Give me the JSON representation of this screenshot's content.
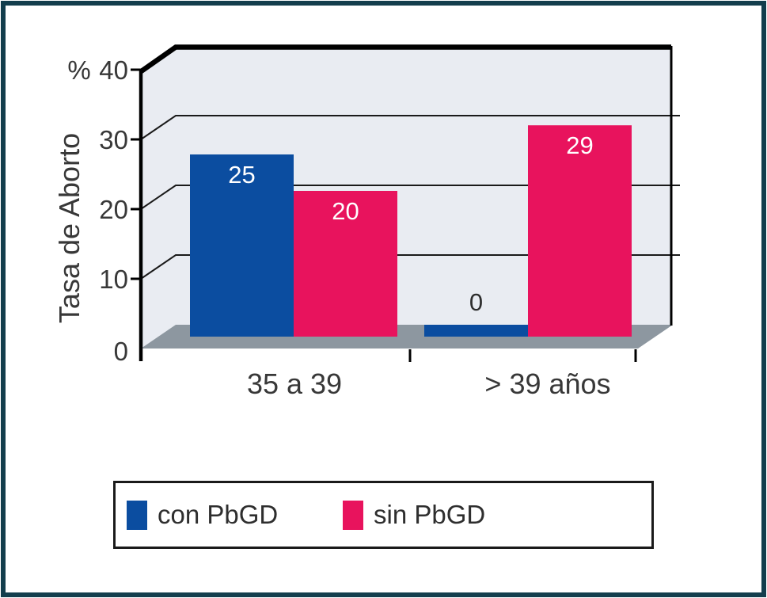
{
  "frame": {
    "border_color": "#133e4d",
    "background": "#ffffff"
  },
  "colors": {
    "blue": "#0b4da0",
    "pink": "#e8135d",
    "wall": "#e9ecf2",
    "floor": "#8d97a0",
    "grid": "#1a1a1a",
    "axis": "#000000",
    "text": "#383838",
    "bar_label": "#ffffff",
    "zero_label": "#2e2e2e"
  },
  "chart_data": {
    "type": "bar",
    "style": "3d-perspective",
    "title": "",
    "ylabel": "Tasa de Aborto",
    "y_unit": "%",
    "categories": [
      "35 a 39",
      "> 39 años"
    ],
    "series": [
      {
        "name": "con PbGD",
        "color_key": "blue",
        "values": [
          25,
          0
        ]
      },
      {
        "name": "sin PbGD",
        "color_key": "pink",
        "values": [
          20,
          29
        ]
      }
    ],
    "y_axis": {
      "min": 0,
      "max": 40,
      "ticks": [
        0,
        10,
        20,
        30,
        40
      ]
    },
    "grid": true,
    "legend_position": "bottom",
    "bar_value_labels": [
      [
        25,
        0
      ],
      [
        20,
        29
      ]
    ]
  }
}
